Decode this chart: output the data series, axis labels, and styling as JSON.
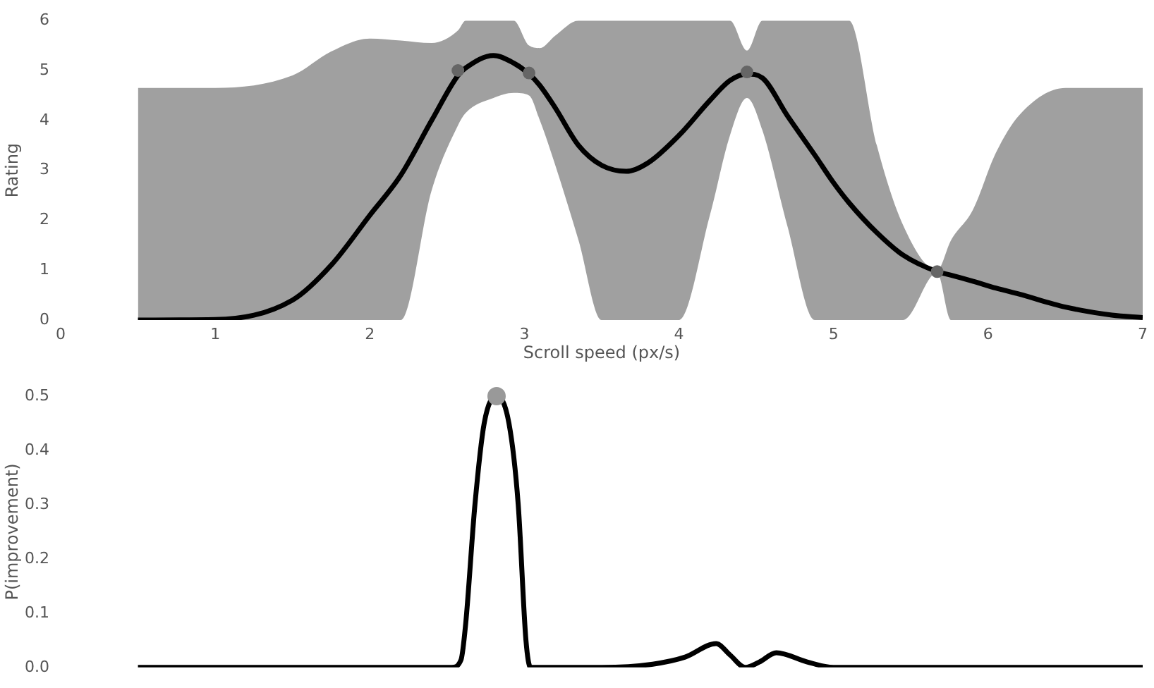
{
  "chart_data": [
    {
      "type": "line",
      "xlabel": "Scroll speed (px/s)",
      "ylabel": "Rating",
      "xlim": [
        0,
        7
      ],
      "ylim": [
        0,
        6
      ],
      "xticks": [
        0,
        1,
        2,
        3,
        4,
        5,
        6,
        7
      ],
      "yticks": [
        0,
        1,
        2,
        3,
        4,
        5,
        6
      ],
      "series": [
        {
          "color": "#000000",
          "x": [
            0.5,
            1.0,
            1.5,
            1.75,
            2.0,
            2.2,
            2.4,
            2.57,
            2.62,
            2.8,
            2.93,
            3.03,
            3.1,
            3.2,
            3.35,
            3.5,
            3.66,
            3.8,
            4.0,
            4.2,
            4.33,
            4.44,
            4.54,
            4.7,
            4.88,
            5.0,
            5.1,
            5.28,
            5.45,
            5.67,
            5.76,
            5.9,
            6.05,
            6.2,
            6.5,
            6.8,
            7.0
          ],
          "values": [
            0,
            0.01,
            0.4,
            1.1,
            2.1,
            2.9,
            4.0,
            4.9,
            5.05,
            5.3,
            5.15,
            4.93,
            4.7,
            4.25,
            3.5,
            3.1,
            2.98,
            3.15,
            3.7,
            4.4,
            4.8,
            4.93,
            4.85,
            4.1,
            3.3,
            2.75,
            2.35,
            1.75,
            1.3,
            0.97,
            0.9,
            0.78,
            0.64,
            0.52,
            0.26,
            0.1,
            0.05
          ],
          "lower": [
            0,
            0,
            0,
            0,
            0,
            0,
            2.6,
            3.9,
            4.15,
            4.45,
            4.55,
            4.5,
            4.0,
            3.1,
            1.6,
            0,
            0,
            0,
            0,
            2.1,
            3.7,
            4.45,
            3.8,
            1.9,
            0,
            0,
            0,
            0,
            0,
            0.95,
            0,
            0,
            0,
            0,
            0,
            0,
            0
          ],
          "upper": [
            4.65,
            4.65,
            4.9,
            5.38,
            5.64,
            5.6,
            5.55,
            5.8,
            6,
            6,
            6,
            5.5,
            5.45,
            5.7,
            6,
            6,
            6,
            6,
            6,
            6,
            6,
            5.4,
            6,
            6,
            6,
            6,
            6,
            3.5,
            1.9,
            1.0,
            1.6,
            2.2,
            3.35,
            4.1,
            4.65,
            4.65,
            4.65
          ]
        },
        {
          "type": "scatter",
          "color": "#666666",
          "marker": "circle",
          "x": [
            2.57,
            3.03,
            4.44,
            5.67
          ],
          "values": [
            5.0,
            4.95,
            4.97,
            0.97
          ]
        }
      ]
    },
    {
      "type": "line",
      "ylabel": "P(improvement)",
      "xlim": [
        0,
        7
      ],
      "ylim": [
        0,
        0.5
      ],
      "yticks": [
        {
          "value": 0,
          "label": "0.0"
        },
        0.1,
        0.2,
        0.3,
        0.4,
        0.5
      ],
      "tick_labels": "y",
      "series": [
        {
          "color": "#000000",
          "x": [
            0.5,
            2.0,
            2.53,
            2.59,
            2.62,
            2.68,
            2.74,
            2.82,
            2.9,
            2.96,
            3.01,
            3.04,
            3.5,
            3.83,
            4.04,
            4.24,
            4.33,
            4.43,
            4.52,
            4.63,
            4.83,
            5.0,
            6.0,
            7.0
          ],
          "values": [
            0,
            0,
            0,
            0.014,
            0.08,
            0.3,
            0.45,
            0.5,
            0.45,
            0.3,
            0.05,
            0,
            0,
            0.006,
            0.019,
            0.044,
            0.023,
            0,
            0.01,
            0.027,
            0.01,
            0,
            0,
            0
          ]
        },
        {
          "type": "scatter",
          "color": "#999999",
          "marker": "circle",
          "x": [
            2.82
          ],
          "values": [
            0.5
          ]
        }
      ]
    }
  ]
}
